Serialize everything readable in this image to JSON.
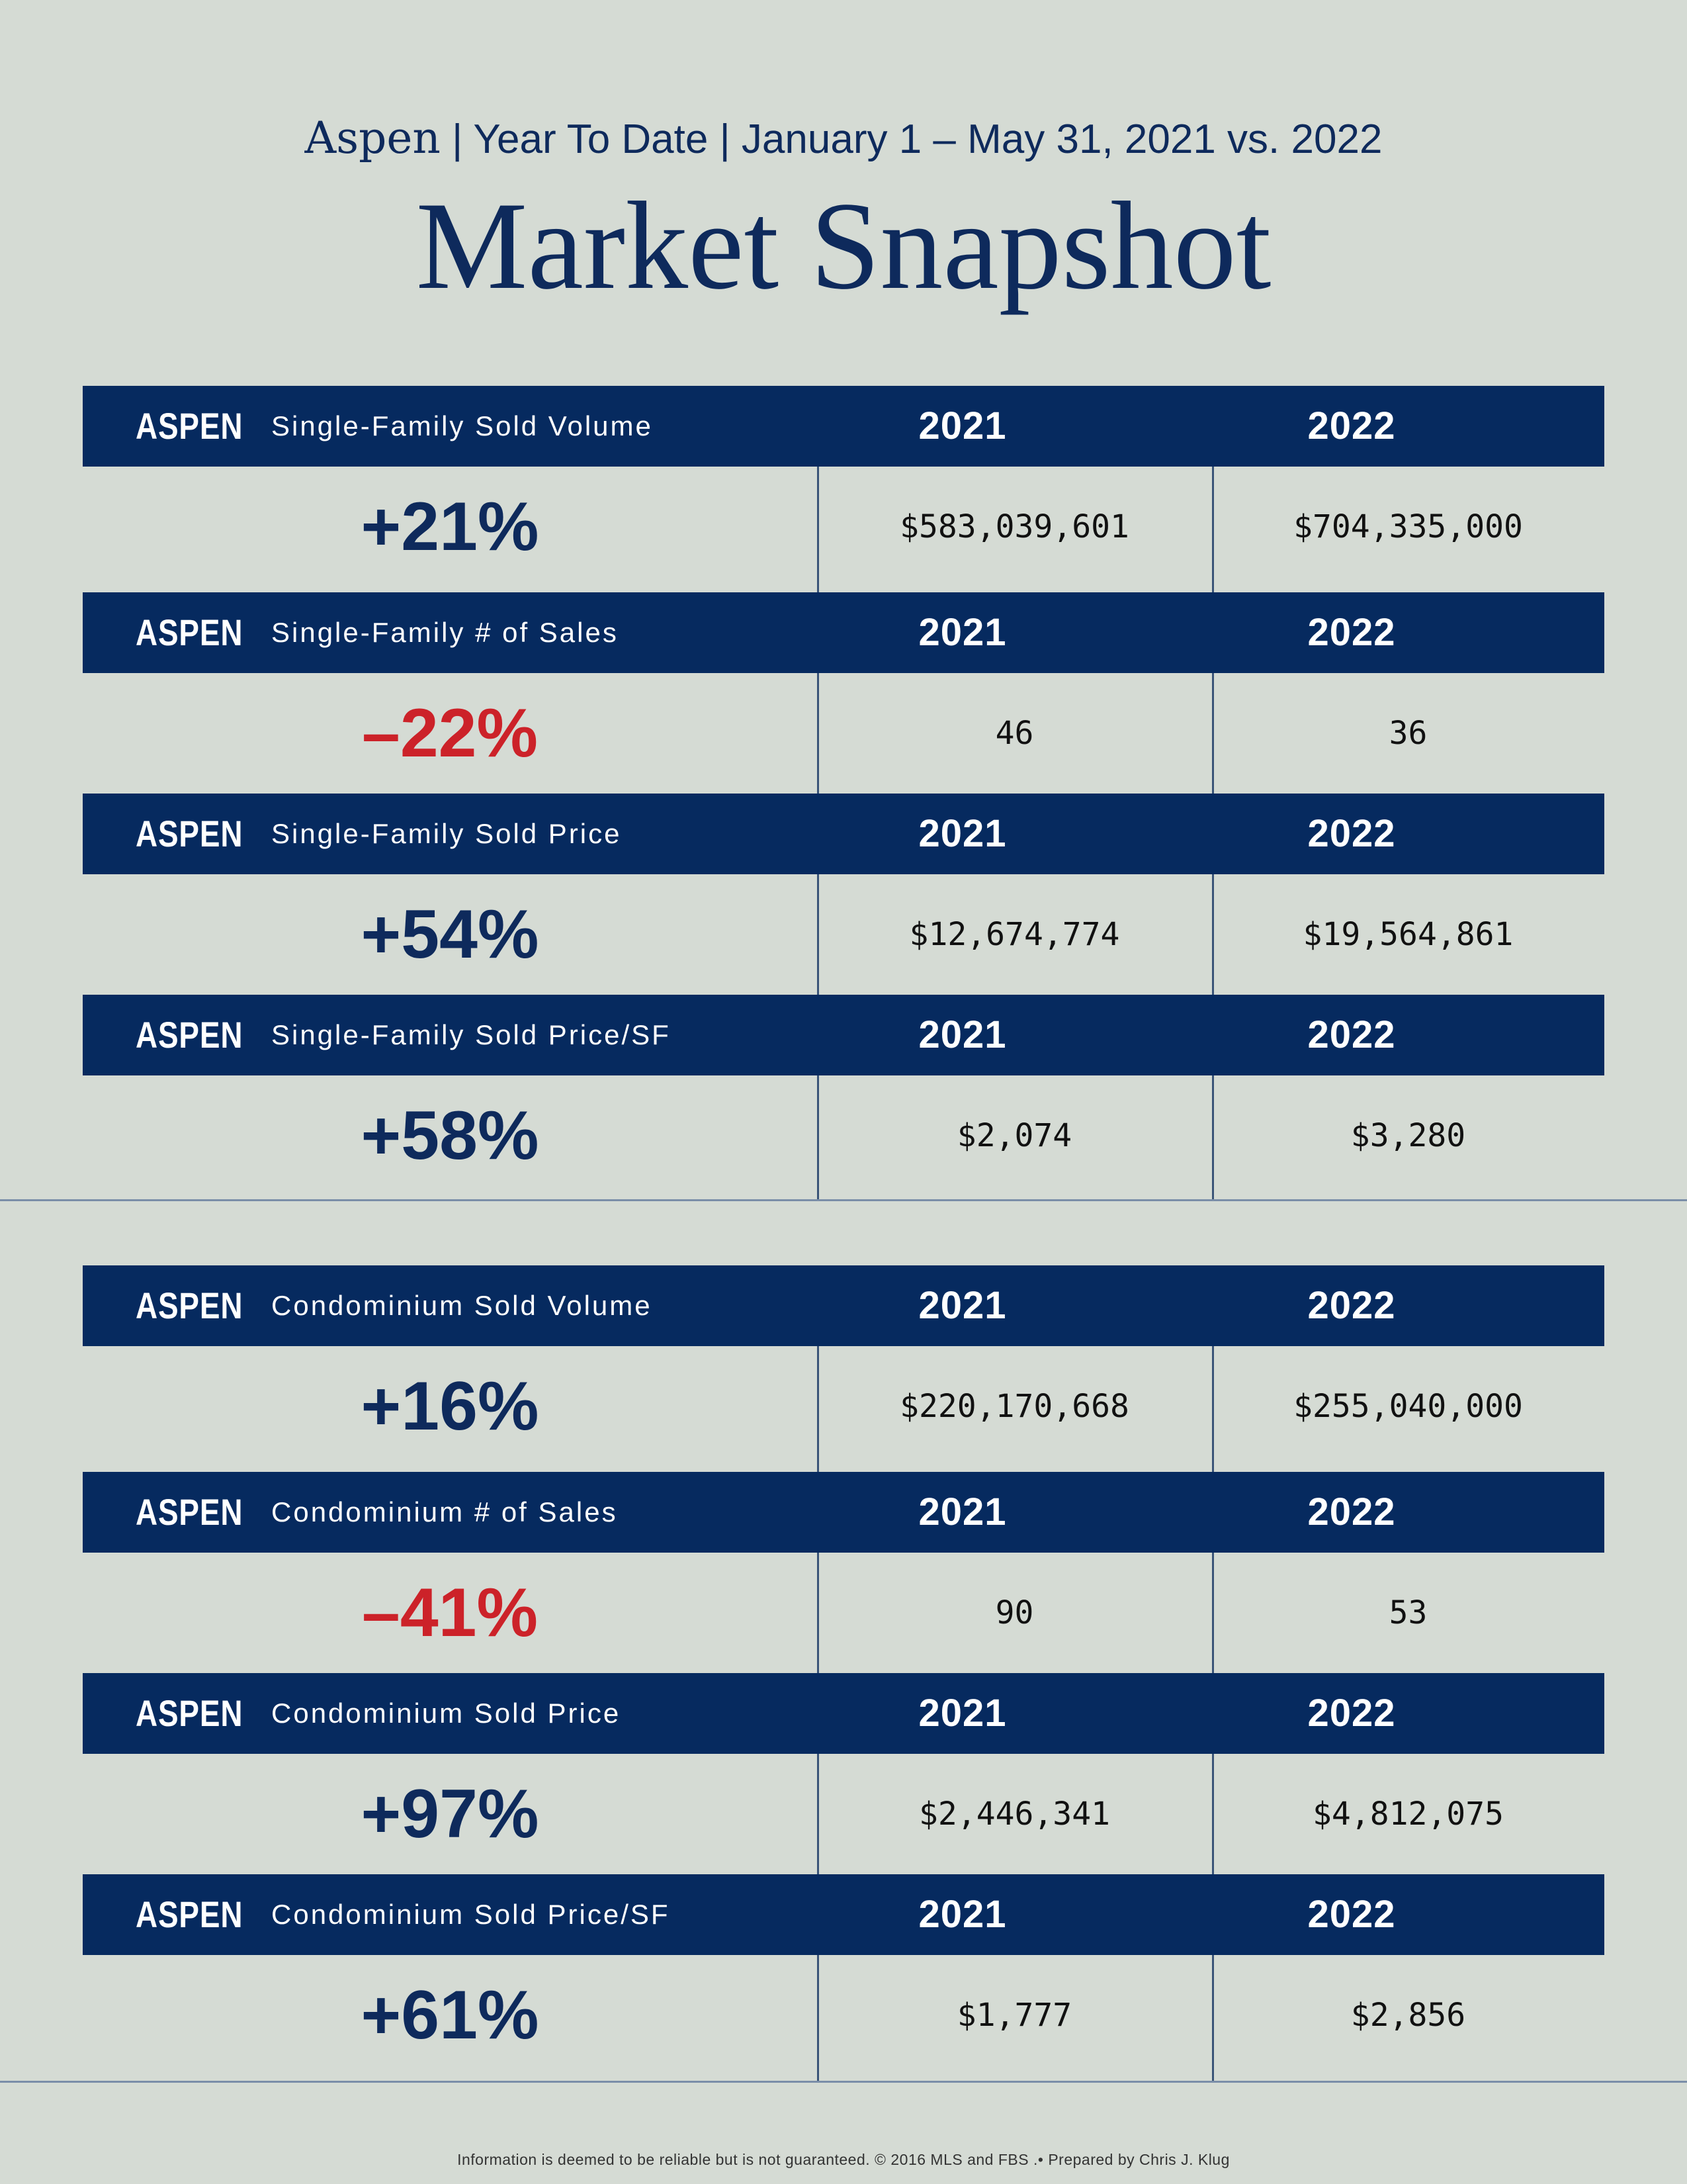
{
  "header": {
    "location": "Aspen",
    "subtitle_rest": " | Year To Date | January 1 – May 31, 2021 vs. 2022",
    "title": "Market Snapshot"
  },
  "single_family": [
    {
      "loc": "ASPEN",
      "metric": "Single-Family Sold Volume",
      "y1": "2021",
      "y2": "2022",
      "change": "+21%",
      "v1": "$583,039,601",
      "v2": "$704,335,000"
    },
    {
      "loc": "ASPEN",
      "metric": "Single-Family # of Sales",
      "y1": "2021",
      "y2": "2022",
      "change": "–22%",
      "v1": "46",
      "v2": "36"
    },
    {
      "loc": "ASPEN",
      "metric": "Single-Family Sold Price",
      "y1": "2021",
      "y2": "2022",
      "change": "+54%",
      "v1": "$12,674,774",
      "v2": "$19,564,861"
    },
    {
      "loc": "ASPEN",
      "metric": "Single-Family Sold Price/SF",
      "y1": "2021",
      "y2": "2022",
      "change": "+58%",
      "v1": "$2,074",
      "v2": "$3,280"
    }
  ],
  "condominium": [
    {
      "loc": "ASPEN",
      "metric": "Condominium Sold Volume",
      "y1": "2021",
      "y2": "2022",
      "change": "+16%",
      "v1": "$220,170,668",
      "v2": "$255,040,000"
    },
    {
      "loc": "ASPEN",
      "metric": "Condominium # of Sales",
      "y1": "2021",
      "y2": "2022",
      "change": "–41%",
      "v1": "90",
      "v2": "53"
    },
    {
      "loc": "ASPEN",
      "metric": "Condominium Sold Price",
      "y1": "2021",
      "y2": "2022",
      "change": "+97%",
      "v1": "$2,446,341",
      "v2": "$4,812,075"
    },
    {
      "loc": "ASPEN",
      "metric": "Condominium Sold Price/SF",
      "y1": "2021",
      "y2": "2022",
      "change": "+61%",
      "v1": "$1,777",
      "v2": "$2,856"
    }
  ],
  "colors": {
    "navy": "#062a5f",
    "negative": "#cc2229",
    "background": "#d5dbd4"
  },
  "footer": "Information is deemed to be reliable but is not guaranteed. © 2016 MLS and FBS .• Prepared by Chris J. Klug"
}
